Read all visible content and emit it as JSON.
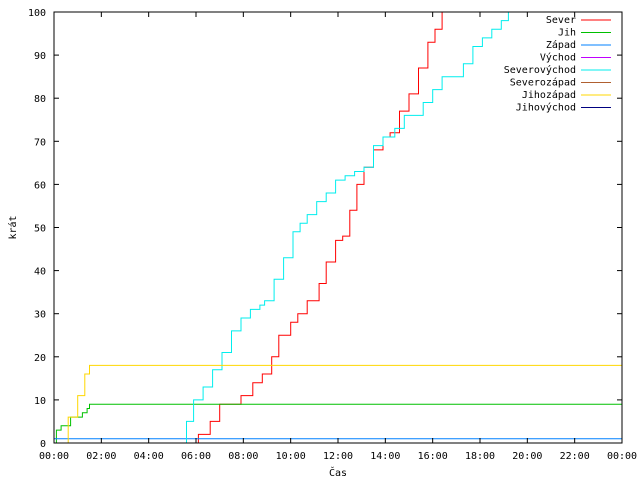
{
  "chart_data": {
    "type": "line",
    "title": "",
    "xlabel": "Čas",
    "ylabel": "krát",
    "x_unit": "hours",
    "xlim": [
      0,
      24
    ],
    "ylim": [
      0,
      100
    ],
    "x_tick_labels": [
      "00:00",
      "02:00",
      "04:00",
      "06:00",
      "08:00",
      "10:00",
      "12:00",
      "14:00",
      "16:00",
      "18:00",
      "20:00",
      "22:00",
      "00:00"
    ],
    "y_tick_labels": [
      "0",
      "10",
      "20",
      "30",
      "40",
      "50",
      "60",
      "70",
      "80",
      "90",
      "100"
    ],
    "grid": false,
    "legend_position": "top-right",
    "series": [
      {
        "name": "Sever",
        "color": "#ff0000",
        "points": [
          [
            0,
            0
          ],
          [
            5.9,
            0
          ],
          [
            6.1,
            2
          ],
          [
            6.6,
            5
          ],
          [
            7.0,
            9
          ],
          [
            7.5,
            9
          ],
          [
            7.9,
            11
          ],
          [
            8.4,
            14
          ],
          [
            8.8,
            16
          ],
          [
            9.2,
            20
          ],
          [
            9.5,
            25
          ],
          [
            9.8,
            25
          ],
          [
            10.0,
            28
          ],
          [
            10.3,
            30
          ],
          [
            10.7,
            33
          ],
          [
            11.2,
            37
          ],
          [
            11.5,
            42
          ],
          [
            11.9,
            47
          ],
          [
            12.2,
            48
          ],
          [
            12.5,
            54
          ],
          [
            12.8,
            60
          ],
          [
            13.1,
            64
          ],
          [
            13.5,
            68
          ],
          [
            13.9,
            71
          ],
          [
            14.2,
            72
          ],
          [
            14.6,
            77
          ],
          [
            15.0,
            81
          ],
          [
            15.4,
            87
          ],
          [
            15.8,
            93
          ],
          [
            16.1,
            96
          ],
          [
            16.4,
            100
          ]
        ]
      },
      {
        "name": "Jih",
        "color": "#00c000",
        "points": [
          [
            0,
            0
          ],
          [
            0.1,
            3
          ],
          [
            0.3,
            4
          ],
          [
            0.6,
            4
          ],
          [
            0.7,
            6
          ],
          [
            1.1,
            6
          ],
          [
            1.2,
            7
          ],
          [
            1.4,
            8
          ],
          [
            1.5,
            9
          ],
          [
            24,
            9
          ]
        ]
      },
      {
        "name": "Západ",
        "color": "#0080ff",
        "points": [
          [
            0,
            1
          ],
          [
            24,
            1
          ]
        ]
      },
      {
        "name": "Východ",
        "color": "#c000ff",
        "points": []
      },
      {
        "name": "Severovýchod",
        "color": "#00eeee",
        "points": [
          [
            0,
            0
          ],
          [
            5.4,
            0
          ],
          [
            5.6,
            5
          ],
          [
            5.9,
            10
          ],
          [
            6.3,
            13
          ],
          [
            6.7,
            17
          ],
          [
            7.1,
            21
          ],
          [
            7.5,
            26
          ],
          [
            7.9,
            29
          ],
          [
            8.3,
            31
          ],
          [
            8.7,
            32
          ],
          [
            8.9,
            33
          ],
          [
            9.3,
            38
          ],
          [
            9.7,
            43
          ],
          [
            10.1,
            49
          ],
          [
            10.4,
            51
          ],
          [
            10.7,
            53
          ],
          [
            11.1,
            56
          ],
          [
            11.5,
            58
          ],
          [
            11.9,
            61
          ],
          [
            12.3,
            62
          ],
          [
            12.7,
            63
          ],
          [
            13.1,
            64
          ],
          [
            13.5,
            69
          ],
          [
            13.9,
            71
          ],
          [
            14.4,
            73
          ],
          [
            14.8,
            76
          ],
          [
            15.2,
            76
          ],
          [
            15.6,
            79
          ],
          [
            16.0,
            82
          ],
          [
            16.4,
            85
          ],
          [
            16.9,
            85
          ],
          [
            17.3,
            88
          ],
          [
            17.7,
            92
          ],
          [
            18.1,
            94
          ],
          [
            18.5,
            96
          ],
          [
            18.9,
            98
          ],
          [
            19.2,
            100
          ]
        ]
      },
      {
        "name": "Severozápad",
        "color": "#b06030",
        "points": []
      },
      {
        "name": "Jihozápad",
        "color": "#ffd700",
        "points": [
          [
            0,
            0
          ],
          [
            0.6,
            6
          ],
          [
            1.0,
            11
          ],
          [
            1.3,
            16
          ],
          [
            1.5,
            18
          ],
          [
            24,
            18
          ]
        ]
      },
      {
        "name": "Jihovýchod",
        "color": "#000080",
        "points": []
      }
    ]
  }
}
